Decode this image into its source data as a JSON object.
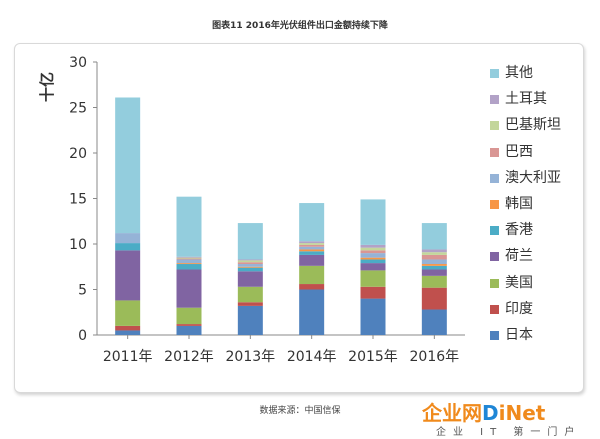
{
  "figure_title": "图表11  2016年光伏组件出口金额持续下降",
  "source_note": "数据来源：中国信保",
  "watermark": {
    "part1": "企业网",
    "part2": "D",
    "part3": "iNet",
    "tagline": "企业 IT 第一门户",
    "color_orange": "#f08a1c",
    "color_blue": "#1f86d6"
  },
  "chart_data": {
    "type": "bar",
    "stacked": true,
    "ylabel": "十亿",
    "ylim": [
      0,
      30
    ],
    "yticks": [
      0,
      5,
      10,
      15,
      20,
      25,
      30
    ],
    "grid": false,
    "legend_position": "right",
    "categories": [
      "2011年",
      "2012年",
      "2013年",
      "2014年",
      "2015年",
      "2016年"
    ],
    "series": [
      {
        "name": "日本",
        "color": "#4f81bd",
        "values": [
          0.5,
          1.0,
          3.2,
          5.0,
          4.0,
          2.8
        ]
      },
      {
        "name": "印度",
        "color": "#c0504d",
        "values": [
          0.5,
          0.2,
          0.4,
          0.6,
          1.3,
          2.4
        ]
      },
      {
        "name": "美国",
        "color": "#9bbb59",
        "values": [
          2.8,
          1.8,
          1.7,
          2.0,
          1.8,
          1.3
        ]
      },
      {
        "name": "荷兰",
        "color": "#8064a2",
        "values": [
          5.5,
          4.2,
          1.7,
          1.2,
          0.8,
          0.7
        ]
      },
      {
        "name": "香港",
        "color": "#4bacc6",
        "values": [
          0.8,
          0.6,
          0.4,
          0.4,
          0.4,
          0.4
        ]
      },
      {
        "name": "韩国",
        "color": "#f79646",
        "values": [
          0.0,
          0.1,
          0.1,
          0.2,
          0.2,
          0.2
        ]
      },
      {
        "name": "澳大利亚",
        "color": "#95b3d7",
        "values": [
          1.1,
          0.4,
          0.3,
          0.3,
          0.5,
          0.5
        ]
      },
      {
        "name": "巴西",
        "color": "#d99694",
        "values": [
          0.0,
          0.1,
          0.2,
          0.2,
          0.3,
          0.5
        ]
      },
      {
        "name": "巴基斯坦",
        "color": "#c3d69b",
        "values": [
          0.0,
          0.1,
          0.2,
          0.2,
          0.3,
          0.3
        ]
      },
      {
        "name": "土耳其",
        "color": "#b2a2c7",
        "values": [
          0.0,
          0.1,
          0.1,
          0.2,
          0.3,
          0.3
        ]
      },
      {
        "name": "其他",
        "color": "#93cddd",
        "values": [
          14.9,
          6.6,
          4.0,
          4.2,
          5.0,
          2.9
        ]
      }
    ]
  }
}
